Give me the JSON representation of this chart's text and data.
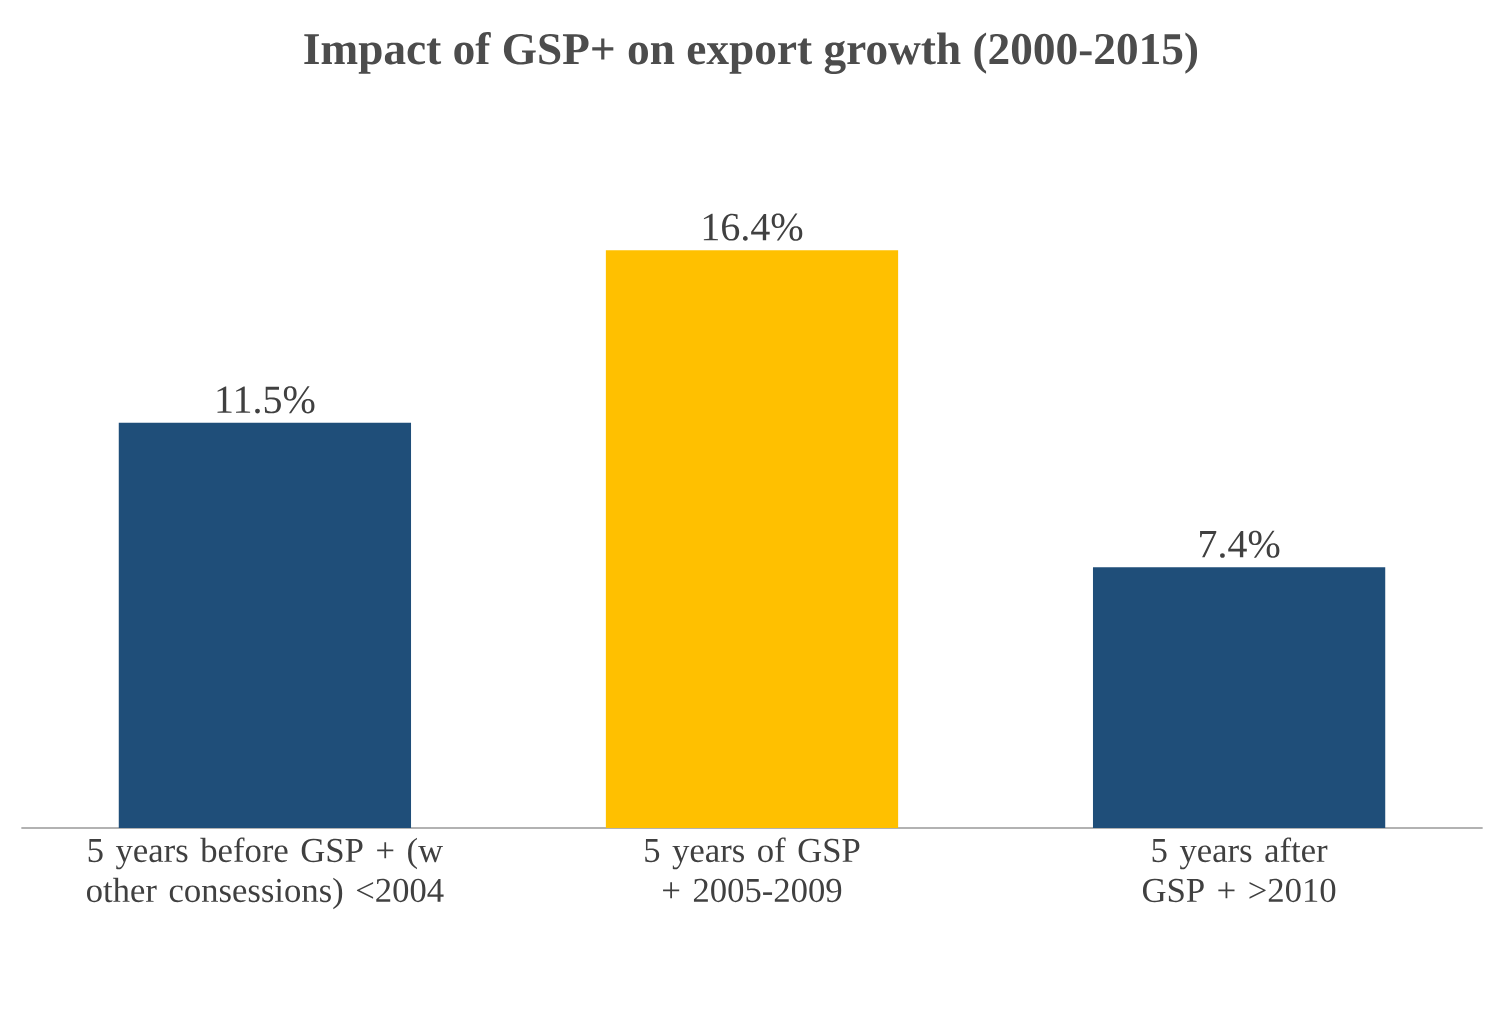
{
  "chart_data": {
    "type": "bar",
    "title": "Impact of GSP+ on export growth (2000-2015)",
    "categories": [
      "5 years before GSP + (w other consessions) <2004",
      "5 years of GSP + 2005-2009",
      "5 years after GSP + >2010"
    ],
    "values": [
      11.5,
      16.4,
      7.4
    ],
    "colors": [
      "#1f4e79",
      "#ffc000",
      "#1f4e79"
    ],
    "value_labels": [
      "11.5%",
      "16.4%",
      "7.4%"
    ]
  }
}
